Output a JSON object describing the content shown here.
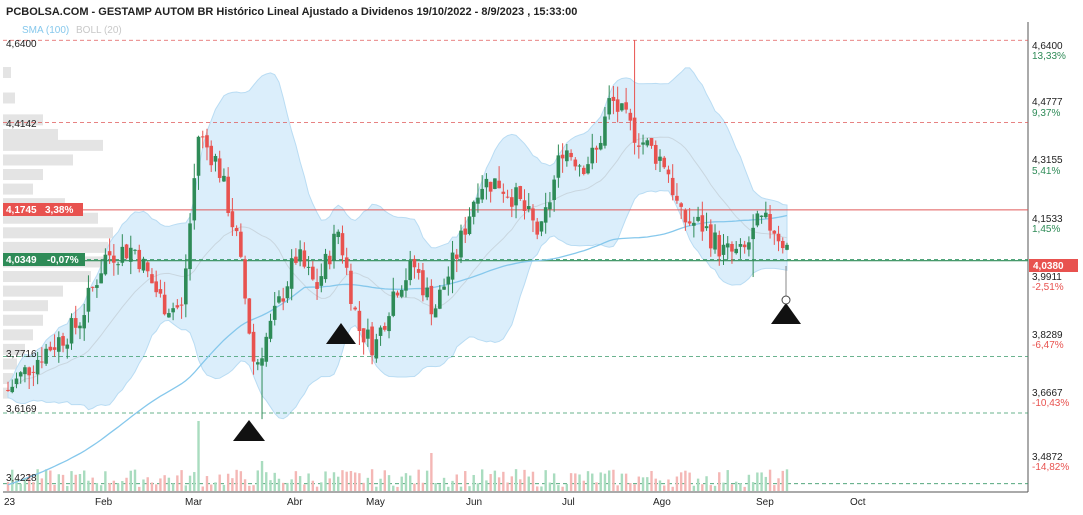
{
  "header": {
    "title": "PCBOLSA.COM - GESTAMP AUTOM BR Histórico Lineal Ajustado a Dividenos 19/10/2022 - 8/9/2023 , 15:33:00",
    "sma_label": "SMA (100)",
    "boll_label": "BOLL (20)"
  },
  "colors": {
    "up": "#2e8b57",
    "down": "#e8524f",
    "sma": "#86c8ec",
    "band_fill": "#dbeefb",
    "band_edge": "#b9dcf3",
    "grid_red": "#e05a5a",
    "grid_green": "#3a9a6a",
    "label_red": "#e8524f",
    "label_green": "#2e8b57"
  },
  "chart_data": {
    "type": "candlestick",
    "ylim": [
      3.4,
      4.69
    ],
    "x_ticks": [
      "23",
      "Feb",
      "Mar",
      "Abr",
      "May",
      "Jun",
      "Jul",
      "Ago",
      "Sep",
      "Oct"
    ],
    "left_levels": [
      "4,6400",
      "4,4142",
      "3,7716",
      "3,6169",
      "3,4228"
    ],
    "right_axis": [
      {
        "price": "4,6400",
        "pct": "13,33%"
      },
      {
        "price": "4,4777",
        "pct": "9,37%"
      },
      {
        "price": "4,3155",
        "pct": "5,41%"
      },
      {
        "price": "4,1533",
        "pct": "1,45%"
      },
      {
        "price": "3,9911",
        "pct": "-2,51%"
      },
      {
        "price": "3,8289",
        "pct": "-6,47%"
      },
      {
        "price": "3,6667",
        "pct": "-10,43%"
      },
      {
        "price": "3,4872",
        "pct": "-14,82%"
      }
    ],
    "current_price_label": "4,0380",
    "resistance_label": {
      "price": "4,1745",
      "pct": "3,38%"
    },
    "support_label": {
      "price": "4,0349",
      "pct": "-0,07%"
    },
    "series": [
      {
        "name": "SMA (100)",
        "kind": "line"
      },
      {
        "name": "BOLL (20)",
        "kind": "band"
      }
    ],
    "signals": [
      "buy",
      "buy",
      "buy"
    ]
  }
}
